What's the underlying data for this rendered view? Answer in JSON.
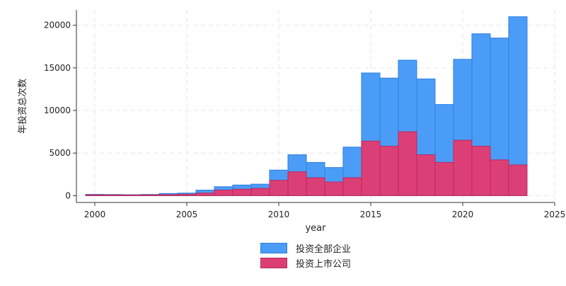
{
  "chart_data": {
    "type": "bar",
    "xlabel": "year",
    "ylabel": "年投资总次数",
    "xlim": [
      1999,
      2025
    ],
    "ylim": [
      -800,
      21800
    ],
    "x_ticks": [
      2000,
      2005,
      2010,
      2015,
      2020,
      2025
    ],
    "y_ticks": [
      0,
      5000,
      10000,
      15000,
      20000
    ],
    "x_tick_labels": [
      "2000",
      "2005",
      "2010",
      "2015",
      "2020",
      "2025"
    ],
    "y_tick_labels": [
      "0",
      "5000",
      "10000",
      "15000",
      "20000"
    ],
    "grid": true,
    "legend_position": "bottom",
    "x": [
      2000,
      2001,
      2002,
      2003,
      2004,
      2005,
      2006,
      2007,
      2008,
      2009,
      2010,
      2011,
      2012,
      2013,
      2014,
      2015,
      2016,
      2017,
      2018,
      2019,
      2020,
      2021,
      2022,
      2023
    ],
    "series": [
      {
        "name": "投资全部企业",
        "color": "#4b9cf6",
        "values": [
          150,
          130,
          110,
          140,
          250,
          300,
          650,
          1050,
          1250,
          1350,
          3000,
          4800,
          3900,
          3300,
          5700,
          14400,
          13800,
          15900,
          13700,
          10700,
          16000,
          19000,
          18500,
          21000
        ]
      },
      {
        "name": "投资上市公司",
        "color": "#dc3f76",
        "values": [
          100,
          90,
          80,
          90,
          120,
          160,
          300,
          650,
          750,
          850,
          1800,
          2800,
          2100,
          1600,
          2100,
          6400,
          5800,
          7500,
          4800,
          3900,
          6500,
          5800,
          4200,
          3600
        ]
      }
    ]
  }
}
